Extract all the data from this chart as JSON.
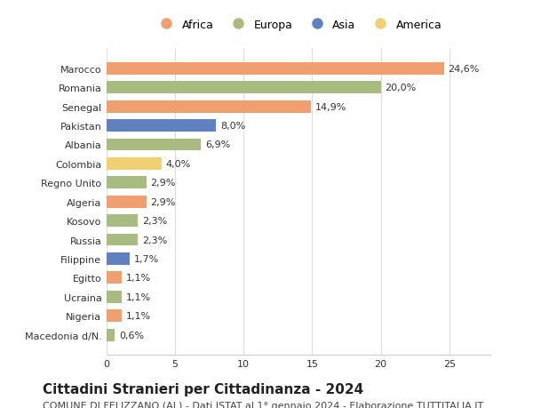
{
  "countries": [
    "Marocco",
    "Romania",
    "Senegal",
    "Pakistan",
    "Albania",
    "Colombia",
    "Regno Unito",
    "Algeria",
    "Kosovo",
    "Russia",
    "Filippine",
    "Egitto",
    "Ucraina",
    "Nigeria",
    "Macedonia d/N."
  ],
  "values": [
    24.6,
    20.0,
    14.9,
    8.0,
    6.9,
    4.0,
    2.9,
    2.9,
    2.3,
    2.3,
    1.7,
    1.1,
    1.1,
    1.1,
    0.6
  ],
  "labels": [
    "24,6%",
    "20,0%",
    "14,9%",
    "8,0%",
    "6,9%",
    "4,0%",
    "2,9%",
    "2,9%",
    "2,3%",
    "2,3%",
    "1,7%",
    "1,1%",
    "1,1%",
    "1,1%",
    "0,6%"
  ],
  "continents": [
    "Africa",
    "Europa",
    "Africa",
    "Asia",
    "Europa",
    "America",
    "Europa",
    "Africa",
    "Europa",
    "Europa",
    "Asia",
    "Africa",
    "Europa",
    "Africa",
    "Europa"
  ],
  "colors": {
    "Africa": "#F0A070",
    "Europa": "#A8BB80",
    "Asia": "#6080C0",
    "America": "#F0D070"
  },
  "legend_order": [
    "Africa",
    "Europa",
    "Asia",
    "America"
  ],
  "title": "Cittadini Stranieri per Cittadinanza - 2024",
  "subtitle": "COMUNE DI FELIZZANO (AL) - Dati ISTAT al 1° gennaio 2024 - Elaborazione TUTTITALIA.IT",
  "xlim": [
    0,
    28
  ],
  "xticks": [
    0,
    5,
    10,
    15,
    20,
    25
  ],
  "background_color": "#ffffff",
  "grid_color": "#dddddd",
  "bar_height": 0.65,
  "title_fontsize": 11,
  "subtitle_fontsize": 8,
  "label_fontsize": 8,
  "tick_fontsize": 8,
  "legend_fontsize": 9
}
